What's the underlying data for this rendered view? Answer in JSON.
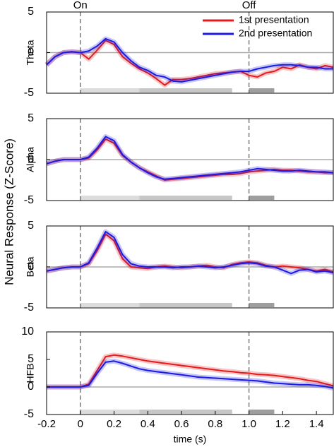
{
  "figure": {
    "ylabel": "Neural Response (Z-Score)"
  },
  "chart_data": [
    {
      "type": "line",
      "ylabel": "Theta",
      "xlim": [
        -0.2,
        1.5
      ],
      "ylim": [
        -5,
        5
      ],
      "yticks": [
        -5,
        0,
        5
      ],
      "annotations": [
        {
          "x": 0,
          "text": "On"
        },
        {
          "x": 1,
          "text": "Off"
        }
      ],
      "vlines": [
        0,
        1
      ],
      "hlines": [
        0
      ],
      "legend": "top-right",
      "intervals": [
        {
          "x": [
            0,
            0.35
          ],
          "color": "#dcdcdc"
        },
        {
          "x": [
            0.35,
            0.9
          ],
          "color": "#c6c6c6"
        },
        {
          "x": [
            1,
            1.15
          ],
          "color": "#9e9e9e"
        }
      ],
      "x": [
        -0.2,
        -0.15,
        -0.1,
        -0.05,
        0,
        0.05,
        0.1,
        0.15,
        0.2,
        0.25,
        0.3,
        0.35,
        0.4,
        0.45,
        0.5,
        0.55,
        0.6,
        0.65,
        0.7,
        0.75,
        0.8,
        0.85,
        0.9,
        0.95,
        1,
        1.05,
        1.1,
        1.15,
        1.2,
        1.25,
        1.3,
        1.35,
        1.4,
        1.45,
        1.5
      ],
      "series": [
        {
          "name": "1st presentation",
          "color": "#e41a1c",
          "values": [
            -1.5,
            -0.5,
            0,
            0.1,
            0,
            -0.8,
            0.3,
            1.5,
            1.0,
            -0.5,
            -1.3,
            -2.0,
            -2.5,
            -3.2,
            -4.0,
            -3.3,
            -3.3,
            -3.2,
            -3.0,
            -2.8,
            -2.6,
            -2.5,
            -2.4,
            -2.3,
            -2.8,
            -3.0,
            -2.5,
            -2.3,
            -1.8,
            -2.0,
            -1.5,
            -1.8,
            -2.0,
            -1.6,
            -1.8
          ]
        },
        {
          "name": "2nd presentation",
          "color": "#1a1ae4",
          "values": [
            -1.5,
            -0.5,
            0,
            0.1,
            0,
            0.2,
            0.8,
            1.7,
            1.3,
            0,
            -1.0,
            -1.8,
            -2.2,
            -2.8,
            -3.0,
            -3.5,
            -3.6,
            -3.4,
            -3.2,
            -3.0,
            -2.8,
            -2.6,
            -2.4,
            -2.3,
            -2.3,
            -2.0,
            -1.8,
            -1.6,
            -1.5,
            -1.5,
            -1.6,
            -1.8,
            -1.8,
            -2.0,
            -2.0
          ]
        }
      ]
    },
    {
      "type": "line",
      "ylabel": "Alpha",
      "xlim": [
        -0.2,
        1.5
      ],
      "ylim": [
        -5,
        5
      ],
      "yticks": [
        -5,
        0,
        5
      ],
      "vlines": [
        0,
        1
      ],
      "hlines": [
        0
      ],
      "intervals": [
        {
          "x": [
            0,
            0.35
          ],
          "color": "#dcdcdc"
        },
        {
          "x": [
            0.35,
            0.9
          ],
          "color": "#c6c6c6"
        },
        {
          "x": [
            1,
            1.15
          ],
          "color": "#9e9e9e"
        }
      ],
      "x": [
        -0.2,
        -0.15,
        -0.1,
        -0.05,
        0,
        0.05,
        0.1,
        0.15,
        0.2,
        0.25,
        0.3,
        0.35,
        0.4,
        0.45,
        0.5,
        0.55,
        0.6,
        0.65,
        0.7,
        0.75,
        0.8,
        0.85,
        0.9,
        0.95,
        1,
        1.05,
        1.1,
        1.15,
        1.2,
        1.25,
        1.3,
        1.35,
        1.4,
        1.45,
        1.5
      ],
      "series": [
        {
          "color": "#e41a1c",
          "values": [
            -0.5,
            -0.2,
            0,
            0,
            0,
            0.2,
            1.2,
            2.5,
            2.0,
            0.5,
            -0.3,
            -1.0,
            -1.5,
            -2.0,
            -2.5,
            -2.4,
            -2.3,
            -2.2,
            -2.1,
            -2.0,
            -1.9,
            -1.8,
            -1.8,
            -1.7,
            -1.5,
            -1.4,
            -1.3,
            -1.2,
            -1.3,
            -1.3,
            -1.4,
            -1.5,
            -1.5,
            -1.6,
            -1.6
          ]
        },
        {
          "color": "#1a1ae4",
          "values": [
            -0.5,
            -0.2,
            0,
            0,
            0,
            0.3,
            1.4,
            2.8,
            2.3,
            0.6,
            -0.3,
            -1.0,
            -1.6,
            -2.1,
            -2.4,
            -2.3,
            -2.2,
            -2.1,
            -2.0,
            -1.9,
            -1.8,
            -1.7,
            -1.6,
            -1.5,
            -1.3,
            -1.1,
            -1.2,
            -1.3,
            -1.4,
            -1.4,
            -1.3,
            -1.4,
            -1.5,
            -1.5,
            -1.6
          ]
        }
      ]
    },
    {
      "type": "line",
      "ylabel": "Beta",
      "xlim": [
        -0.2,
        1.5
      ],
      "ylim": [
        -5,
        5
      ],
      "yticks": [
        -5,
        0,
        5
      ],
      "vlines": [
        0,
        1
      ],
      "hlines": [
        0
      ],
      "intervals": [
        {
          "x": [
            0,
            0.35
          ],
          "color": "#dcdcdc"
        },
        {
          "x": [
            0.35,
            0.9
          ],
          "color": "#c6c6c6"
        },
        {
          "x": [
            1,
            1.15
          ],
          "color": "#9e9e9e"
        }
      ],
      "x": [
        -0.2,
        -0.15,
        -0.1,
        -0.05,
        0,
        0.05,
        0.1,
        0.15,
        0.2,
        0.25,
        0.3,
        0.35,
        0.4,
        0.45,
        0.5,
        0.55,
        0.6,
        0.65,
        0.7,
        0.75,
        0.8,
        0.85,
        0.9,
        0.95,
        1,
        1.05,
        1.1,
        1.15,
        1.2,
        1.25,
        1.3,
        1.35,
        1.4,
        1.45,
        1.5
      ],
      "series": [
        {
          "color": "#e41a1c",
          "values": [
            -0.5,
            -0.3,
            -0.1,
            0,
            0,
            0.4,
            2.0,
            4.0,
            3.2,
            1.0,
            0,
            -0.1,
            -0.2,
            0,
            0.1,
            0,
            -0.1,
            0,
            0.1,
            0.2,
            0,
            -0.1,
            0.3,
            0.5,
            0.6,
            0.5,
            0.2,
            0,
            0.1,
            0,
            -0.1,
            -0.3,
            -0.5,
            -0.3,
            -0.6
          ]
        },
        {
          "color": "#1a1ae4",
          "values": [
            -0.5,
            -0.3,
            -0.1,
            0,
            0,
            0.5,
            2.3,
            4.3,
            3.6,
            1.5,
            0.4,
            0.1,
            0,
            0,
            0,
            -0.1,
            0,
            0,
            0.1,
            0,
            -0.1,
            0,
            0.2,
            0.4,
            0.5,
            0.4,
            0.1,
            0,
            -0.4,
            -0.8,
            -0.4,
            -0.3,
            -0.6,
            -0.5,
            -0.7
          ]
        }
      ]
    },
    {
      "type": "line",
      "ylabel": "HFB",
      "xlabel": "time (s)",
      "xlim": [
        -0.2,
        1.5
      ],
      "ylim": [
        -5,
        10
      ],
      "yticks": [
        -5,
        0,
        5,
        10
      ],
      "xticks": [
        -0.2,
        0,
        0.2,
        0.4,
        0.6,
        0.8,
        {
          "value": 1,
          "label": "1.0"
        },
        1.2,
        1.4
      ],
      "vlines": [
        0,
        1
      ],
      "hlines": [
        0
      ],
      "intervals": [
        {
          "x": [
            0,
            0.35
          ],
          "color": "#dcdcdc"
        },
        {
          "x": [
            0.35,
            0.9
          ],
          "color": "#c6c6c6"
        },
        {
          "x": [
            1,
            1.15
          ],
          "color": "#9e9e9e"
        }
      ],
      "x": [
        -0.2,
        -0.15,
        -0.1,
        -0.05,
        0,
        0.05,
        0.1,
        0.15,
        0.2,
        0.25,
        0.3,
        0.35,
        0.4,
        0.45,
        0.5,
        0.55,
        0.6,
        0.65,
        0.7,
        0.75,
        0.8,
        0.85,
        0.9,
        0.95,
        1,
        1.05,
        1.1,
        1.15,
        1.2,
        1.25,
        1.3,
        1.35,
        1.4,
        1.45,
        1.5
      ],
      "series": [
        {
          "color": "#e41a1c",
          "values": [
            0,
            0,
            0,
            0,
            0,
            0.5,
            3.0,
            5.5,
            5.8,
            5.6,
            5.3,
            5.0,
            4.7,
            4.5,
            4.3,
            4.1,
            3.9,
            3.7,
            3.5,
            3.3,
            3.1,
            2.9,
            2.8,
            2.6,
            2.5,
            2.3,
            2.2,
            2.1,
            1.9,
            1.7,
            1.5,
            1.2,
            1.0,
            0.6,
            0.2
          ]
        },
        {
          "color": "#1a1ae4",
          "values": [
            0,
            0,
            0,
            0,
            0,
            0.3,
            2.5,
            4.5,
            4.7,
            4.3,
            3.8,
            3.3,
            3.0,
            2.8,
            2.6,
            2.4,
            2.2,
            2.0,
            1.8,
            1.7,
            1.6,
            1.5,
            1.4,
            1.3,
            1.2,
            1.1,
            0.9,
            0.7,
            0.6,
            0.5,
            0.4,
            0.4,
            0.3,
            0.1,
            -0.2
          ]
        }
      ]
    }
  ]
}
